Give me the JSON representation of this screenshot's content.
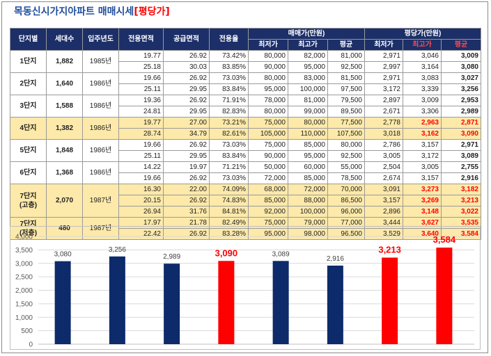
{
  "title": {
    "main": "목동신시가지아파트 매매시세",
    "highlight": "[평당가]"
  },
  "table": {
    "headers": {
      "complex": "단지별",
      "households": "세대수",
      "year": "입주년도",
      "exclusive_area": "전용면적",
      "supply_area": "공급면적",
      "ratio": "전용율",
      "sale_group": "매매가(만원)",
      "pyeong_group": "평당가(만원)",
      "sale_sub": [
        "최저가",
        "최고가",
        "평균"
      ],
      "pyeong_sub": [
        "최저가",
        "최고가",
        "평균"
      ]
    },
    "groups": [
      {
        "name": "1단지",
        "households": "1,882",
        "year": "1985년",
        "highlight": false,
        "rows": [
          {
            "ex": "19.77",
            "sup": "26.92",
            "ratio": "73.42%",
            "s_min": "80,000",
            "s_max": "82,000",
            "s_avg": "81,000",
            "p_min": "2,971",
            "p_max": "3,046",
            "p_avg": "3,009",
            "red": false
          },
          {
            "ex": "25.18",
            "sup": "30.03",
            "ratio": "83.85%",
            "s_min": "90,000",
            "s_max": "95,000",
            "s_avg": "92,500",
            "p_min": "2,997",
            "p_max": "3,164",
            "p_avg": "3,080",
            "red": false
          }
        ]
      },
      {
        "name": "2단지",
        "households": "1,640",
        "year": "1986년",
        "highlight": false,
        "rows": [
          {
            "ex": "19.66",
            "sup": "26.92",
            "ratio": "73.03%",
            "s_min": "80,000",
            "s_max": "83,000",
            "s_avg": "81,500",
            "p_min": "2,971",
            "p_max": "3,083",
            "p_avg": "3,027",
            "red": false
          },
          {
            "ex": "25.11",
            "sup": "29.95",
            "ratio": "83.84%",
            "s_min": "95,000",
            "s_max": "100,000",
            "s_avg": "97,500",
            "p_min": "3,172",
            "p_max": "3,339",
            "p_avg": "3,256",
            "red": false
          }
        ]
      },
      {
        "name": "3단지",
        "households": "1,588",
        "year": "1986년",
        "highlight": false,
        "rows": [
          {
            "ex": "19.36",
            "sup": "26.92",
            "ratio": "71.91%",
            "s_min": "78,000",
            "s_max": "81,000",
            "s_avg": "79,500",
            "p_min": "2,897",
            "p_max": "3,009",
            "p_avg": "2,953",
            "red": false
          },
          {
            "ex": "24.81",
            "sup": "29.95",
            "ratio": "82.83%",
            "s_min": "80,000",
            "s_max": "99,000",
            "s_avg": "89,500",
            "p_min": "2,671",
            "p_max": "3,306",
            "p_avg": "2,989",
            "red": false
          }
        ]
      },
      {
        "name": "4단지",
        "households": "1,382",
        "year": "1986년",
        "highlight": true,
        "rows": [
          {
            "ex": "19.77",
            "sup": "27.00",
            "ratio": "73.21%",
            "s_min": "75,000",
            "s_max": "80,000",
            "s_avg": "77,500",
            "p_min": "2,778",
            "p_max": "2,963",
            "p_avg": "2,871",
            "red": true
          },
          {
            "ex": "28.74",
            "sup": "34.79",
            "ratio": "82.61%",
            "s_min": "105,000",
            "s_max": "110,000",
            "s_avg": "107,500",
            "p_min": "3,018",
            "p_max": "3,162",
            "p_avg": "3,090",
            "red": true
          }
        ]
      },
      {
        "name": "5단지",
        "households": "1,848",
        "year": "1986년",
        "highlight": false,
        "rows": [
          {
            "ex": "19.66",
            "sup": "26.92",
            "ratio": "73.03%",
            "s_min": "75,000",
            "s_max": "85,000",
            "s_avg": "80,000",
            "p_min": "2,786",
            "p_max": "3,157",
            "p_avg": "2,971",
            "red": false
          },
          {
            "ex": "25.11",
            "sup": "29.95",
            "ratio": "83.84%",
            "s_min": "90,000",
            "s_max": "95,000",
            "s_avg": "92,500",
            "p_min": "3,005",
            "p_max": "3,172",
            "p_avg": "3,089",
            "red": false
          }
        ]
      },
      {
        "name": "6단지",
        "households": "1,368",
        "year": "1986년",
        "highlight": false,
        "rows": [
          {
            "ex": "14.22",
            "sup": "19.97",
            "ratio": "71.21%",
            "s_min": "50,000",
            "s_max": "60,000",
            "s_avg": "55,000",
            "p_min": "2,504",
            "p_max": "3,005",
            "p_avg": "2,755",
            "red": false
          },
          {
            "ex": "19.66",
            "sup": "26.92",
            "ratio": "73.03%",
            "s_min": "72,000",
            "s_max": "85,000",
            "s_avg": "78,500",
            "p_min": "2,674",
            "p_max": "3,157",
            "p_avg": "2,916",
            "red": false
          }
        ]
      },
      {
        "name": "7단지",
        "name_sub": "(고층)",
        "households": "2,070",
        "year": "1987년",
        "highlight": true,
        "rows": [
          {
            "ex": "16.30",
            "sup": "22.00",
            "ratio": "74.09%",
            "s_min": "68,000",
            "s_max": "72,000",
            "s_avg": "70,000",
            "p_min": "3,091",
            "p_max": "3,273",
            "p_avg": "3,182",
            "red": true
          },
          {
            "ex": "20.15",
            "sup": "26.92",
            "ratio": "74.83%",
            "s_min": "85,000",
            "s_max": "88,000",
            "s_avg": "86,500",
            "p_min": "3,157",
            "p_max": "3,269",
            "p_avg": "3,213",
            "red": true
          },
          {
            "ex": "26.94",
            "sup": "31.76",
            "ratio": "84.81%",
            "s_min": "92,000",
            "s_max": "100,000",
            "s_avg": "96,000",
            "p_min": "2,896",
            "p_max": "3,148",
            "p_avg": "3,022",
            "red": true
          }
        ]
      },
      {
        "name": "7단지",
        "name_sub": "(저층)",
        "households": "480",
        "year": "1987년",
        "highlight": true,
        "rows": [
          {
            "ex": "17.97",
            "sup": "21.78",
            "ratio": "82.49%",
            "s_min": "75,000",
            "s_max": "79,000",
            "s_avg": "77,000",
            "p_min": "3,444",
            "p_max": "3,627",
            "p_avg": "3,535",
            "red": true
          },
          {
            "ex": "22.42",
            "sup": "26.92",
            "ratio": "83.28%",
            "s_min": "95,000",
            "s_max": "98,000",
            "s_avg": "96,500",
            "p_min": "3,529",
            "p_max": "3,640",
            "p_avg": "3,584",
            "red": true
          }
        ]
      }
    ]
  },
  "chart_data": {
    "type": "bar",
    "values": [
      3080,
      3256,
      2989,
      3090,
      3089,
      2916,
      3213,
      3584
    ],
    "labels": [
      "3,080",
      "3,256",
      "2,989",
      "3,090",
      "3,089",
      "2,916",
      "3,213",
      "3,584"
    ],
    "highlight": [
      false,
      false,
      false,
      true,
      false,
      false,
      true,
      true
    ],
    "ylim": [
      0,
      4000
    ],
    "yticks": [
      "0",
      "500",
      "1,000",
      "1,500",
      "2,000",
      "2,500",
      "3,000",
      "3,500",
      "4,000"
    ],
    "grid": true,
    "colors": {
      "normal": "#0d2a6b",
      "highlight": "#ff0000"
    }
  }
}
